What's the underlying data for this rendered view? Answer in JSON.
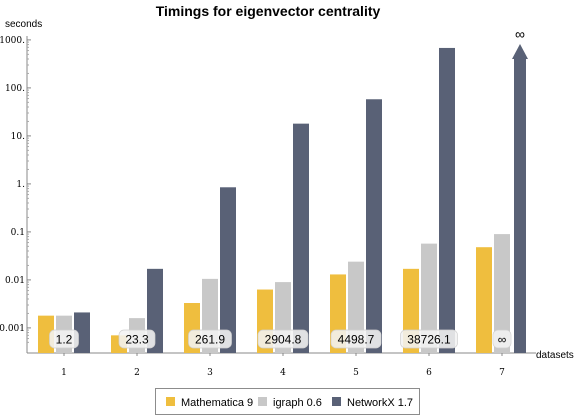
{
  "chart_data": {
    "type": "bar",
    "title": "Timings for eigenvector centrality",
    "ylabel": "seconds",
    "xlabel": "datasets",
    "y_scale": "log",
    "ylim": [
      0.0003,
      3000
    ],
    "y_ticks": [
      {
        "value": 0.001,
        "label": "0.001"
      },
      {
        "value": 0.01,
        "label": "0.01"
      },
      {
        "value": 0.1,
        "label": "0.1"
      },
      {
        "value": 1,
        "label": "1."
      },
      {
        "value": 10,
        "label": "10."
      },
      {
        "value": 100,
        "label": "100."
      },
      {
        "value": 1000,
        "label": "1000."
      }
    ],
    "categories": [
      "1",
      "2",
      "3",
      "4",
      "5",
      "6",
      "7"
    ],
    "series": [
      {
        "name": "Mathematica 9",
        "color": "#EFBE3E",
        "values": [
          0.0018,
          0.0007,
          0.0033,
          0.0063,
          0.013,
          0.017,
          0.048
        ]
      },
      {
        "name": "igraph 0.6",
        "color": "#C8C8C8",
        "values": [
          0.0018,
          0.0016,
          0.0105,
          0.009,
          0.024,
          0.057,
          0.09
        ]
      },
      {
        "name": "NetworkX 1.7",
        "color": "#596176",
        "values": [
          0.0021,
          0.017,
          0.85,
          18,
          58,
          680,
          "∞"
        ]
      }
    ],
    "ratio_labels": [
      "1.2",
      "23.3",
      "261.9",
      "2904.8",
      "4498.7",
      "38726.1",
      "∞"
    ],
    "infinity_marker": "∞",
    "legend_position": "bottom",
    "grid": false
  }
}
